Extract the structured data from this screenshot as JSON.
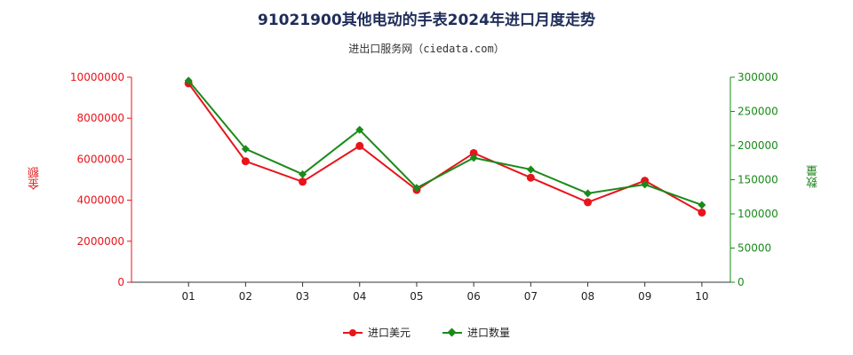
{
  "chart_data": {
    "type": "line",
    "title": "91021900其他电动的手表2024年进口月度走势",
    "subtitle": "进出口服务网（ciedata.com）",
    "categories": [
      "01",
      "02",
      "03",
      "04",
      "05",
      "06",
      "07",
      "08",
      "09",
      "10"
    ],
    "ylabel_left": "金额",
    "ylabel_right": "数量",
    "ylim_left": [
      0,
      10000000
    ],
    "ylim_right": [
      0,
      300000
    ],
    "yticks_left": [
      "0",
      "2000000",
      "4000000",
      "6000000",
      "8000000",
      "10000000"
    ],
    "yticks_right": [
      "0",
      "50000",
      "100000",
      "150000",
      "200000",
      "250000",
      "300000"
    ],
    "series": [
      {
        "name": "进口美元",
        "axis": "left",
        "color": "#e8141b",
        "marker": "circle",
        "values": [
          9700000,
          5900000,
          4900000,
          6650000,
          4500000,
          6300000,
          5100000,
          3900000,
          4950000,
          3400000
        ]
      },
      {
        "name": "进口数量",
        "axis": "right",
        "color": "#1a8a1a",
        "marker": "diamond",
        "values": [
          295000,
          195000,
          158000,
          223000,
          138000,
          182000,
          165000,
          130000,
          143000,
          113000
        ]
      }
    ],
    "legend_position": "bottom",
    "grid": false
  }
}
